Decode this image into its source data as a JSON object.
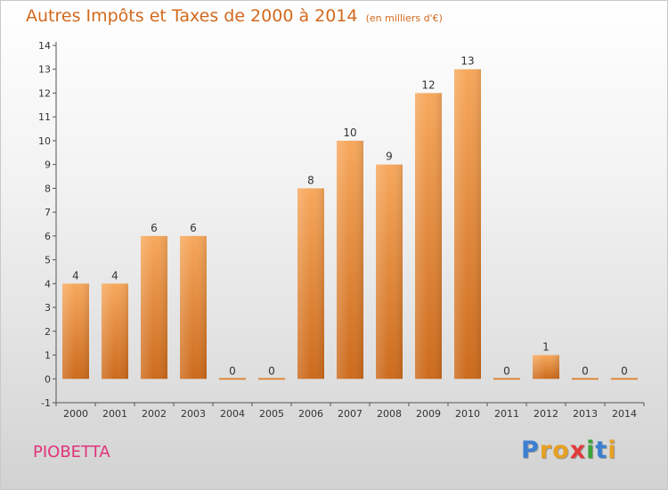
{
  "title": {
    "main": "Autres Impôts et Taxes de 2000 à 2014",
    "unit": "(en milliers d'€)"
  },
  "commune": "PIOBETTA",
  "logo": "Proxiti",
  "colors": {
    "bar_light": "#f7a85c",
    "bar_dark": "#cc6a1c",
    "title": "#d2691e",
    "commune": "#e0347a",
    "axis": "#555555"
  },
  "chart_data": {
    "type": "bar",
    "title": "Autres Impôts et Taxes de 2000 à 2014",
    "subtitle": "(en milliers d'€)",
    "xlabel": "",
    "ylabel": "",
    "categories": [
      "2000",
      "2001",
      "2002",
      "2003",
      "2004",
      "2005",
      "2006",
      "2007",
      "2008",
      "2009",
      "2010",
      "2011",
      "2012",
      "2013",
      "2014"
    ],
    "values": [
      4,
      4,
      6,
      6,
      0,
      0,
      8,
      10,
      9,
      12,
      13,
      0,
      1,
      0,
      0
    ],
    "ylim": [
      -1,
      14
    ],
    "yticks": [
      "-1",
      "0",
      "1",
      "2",
      "3",
      "4",
      "5",
      "6",
      "7",
      "8",
      "9",
      "10",
      "11",
      "12",
      "13",
      "14"
    ],
    "grid": false,
    "legend": "none"
  }
}
